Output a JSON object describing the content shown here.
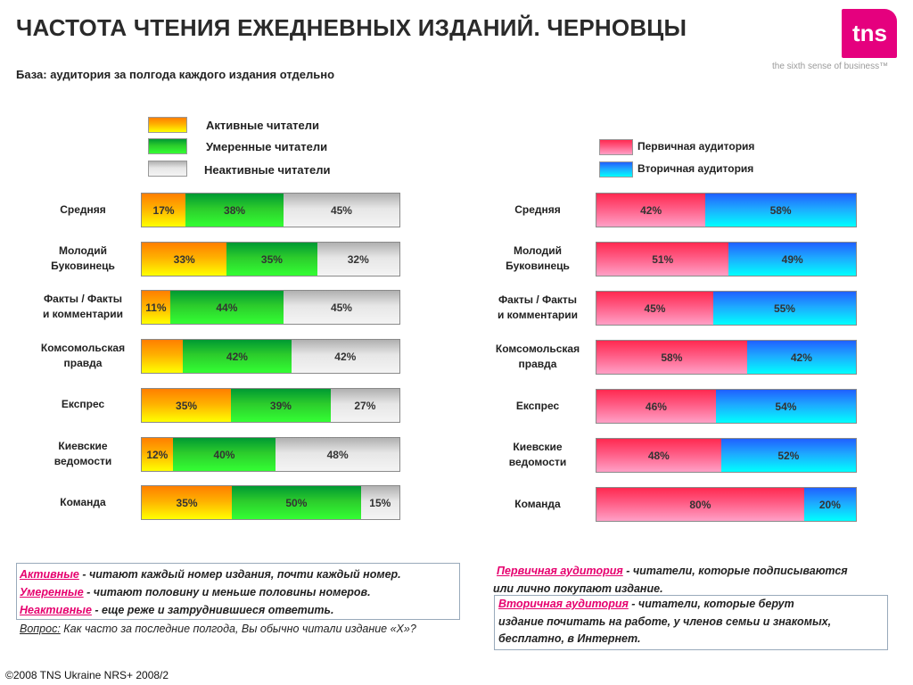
{
  "title": "ЧАСТОТА ЧТЕНИЯ ЕЖЕДНЕВНЫХ ИЗДАНИЙ. ЧЕРНОВЦЫ",
  "subtitle": "База: аудитория за полгода каждого издания отдельно",
  "logo": {
    "text": "tns",
    "tagline": "the sixth sense of business™",
    "color": "#e5007e"
  },
  "chart_data": [
    {
      "type": "bar",
      "stacked": true,
      "orientation": "horizontal",
      "percent_stacked": true,
      "categories": [
        "Средняя",
        "Молодий\nБуковинець",
        "Факты / Факты\nи комментарии",
        "Комсомольская\nправда",
        "Експрес",
        "Киевские\nведомости",
        "Команда"
      ],
      "series": [
        {
          "name": "Активные читатели",
          "values": [
            17,
            33,
            11,
            16,
            35,
            12,
            35
          ],
          "labels": [
            "17%",
            "33%",
            "11%",
            "",
            "35%",
            "12%",
            "35%"
          ],
          "color": "#ff9900"
        },
        {
          "name": "Умеренные читатели",
          "values": [
            38,
            35,
            44,
            42,
            39,
            40,
            50
          ],
          "labels": [
            "38%",
            "35%",
            "44%",
            "42%",
            "39%",
            "40%",
            "50%"
          ],
          "color": "#22cc22"
        },
        {
          "name": "Неактивные читатели",
          "values": [
            45,
            32,
            45,
            42,
            27,
            48,
            15
          ],
          "labels": [
            "45%",
            "32%",
            "45%",
            "42%",
            "27%",
            "48%",
            "15%"
          ],
          "color": "#dddddd"
        }
      ],
      "legend": "top"
    },
    {
      "type": "bar",
      "stacked": true,
      "orientation": "horizontal",
      "percent_stacked": true,
      "categories": [
        "Средняя",
        "Молодий\nБуковинець",
        "Факты / Факты\nи комментарии",
        "Комсомольская\nправда",
        "Експрес",
        "Киевские\nведомости",
        "Команда"
      ],
      "series": [
        {
          "name": "Первичная аудитория",
          "values": [
            42,
            51,
            45,
            58,
            46,
            48,
            80
          ],
          "labels": [
            "42%",
            "51%",
            "45%",
            "58%",
            "46%",
            "48%",
            "80%"
          ],
          "color": "#ff4f7a"
        },
        {
          "name": "Вторичная аудитория",
          "values": [
            58,
            49,
            55,
            42,
            54,
            52,
            20
          ],
          "labels": [
            "58%",
            "49%",
            "55%",
            "42%",
            "54%",
            "52%",
            "20%"
          ],
          "color": "#1eaaff"
        }
      ],
      "legend": "top-right"
    }
  ],
  "notes_left": [
    {
      "term": "Активные",
      "text": " - читают каждый номер издания, почти каждый номер."
    },
    {
      "term": "Умеренные",
      "text": " - читают половину и меньше  половины номеров."
    },
    {
      "term": "Неактивные",
      "text": " - еще реже и затруднившиеся ответить."
    }
  ],
  "question": {
    "label": "Вопрос:",
    "text": " Как часто за последние полгода, Вы обычно читали издание «Х»?"
  },
  "notes_right": {
    "primary": {
      "term": "Первичная аудитория",
      "line1": " - читатели, которые подписываются",
      "line2": "или лично покупают издание."
    },
    "secondary": {
      "term": "Вторичная аудитория",
      "line1": " - читатели, которые берут",
      "line2": "издание почитать на работе, у членов семьи и знакомых,",
      "line3": "бесплатно, в Интернет."
    }
  },
  "footer": "©2008 TNS Ukraine  NRS+ 2008/2"
}
